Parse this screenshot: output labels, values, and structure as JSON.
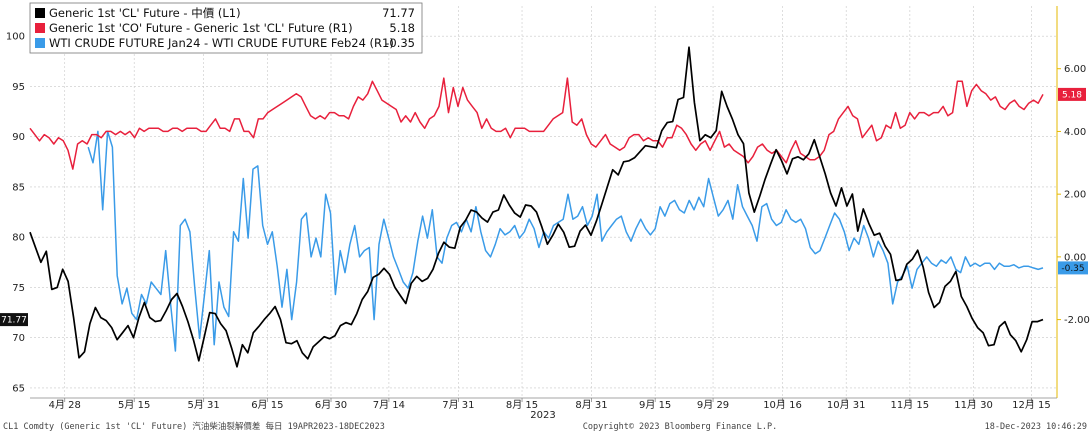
{
  "chart_data": {
    "type": "line",
    "left_axis": {
      "ticks": [
        65,
        70,
        75,
        80,
        85,
        90,
        95,
        100
      ],
      "range": [
        64,
        103
      ]
    },
    "right_axis": {
      "ticks": [
        "6.00",
        "4.00",
        "2.00",
        "0.00",
        "-2.00"
      ],
      "tick_values": [
        6,
        4,
        2,
        0,
        -2
      ],
      "range": [
        -4.5,
        8.0
      ]
    },
    "x_labels": [
      "4月 28",
      "5月 15",
      "5月 31",
      "6月 15",
      "6月 30",
      "7月 14",
      "7月 31",
      "8月 15",
      "8月 31",
      "9月 15",
      "9月 29",
      "10月 16",
      "10月 31",
      "11月 15",
      "11月 30",
      "12月 15"
    ],
    "x_label_index": [
      6,
      18,
      30,
      41,
      52,
      62,
      74,
      85,
      97,
      108,
      118,
      130,
      141,
      152,
      163,
      173
    ],
    "x_total": 176,
    "year_label": "2023",
    "grid": true,
    "legend_position": "top-left",
    "series": [
      {
        "name": "Generic 1st 'CL' Future - 中價 (L1)",
        "last_value": "71.77",
        "color": "#000000",
        "axis": "left",
        "values": [
          80.5,
          79.0,
          77.5,
          78.6,
          74.8,
          75.0,
          76.8,
          75.6,
          72.0,
          68.0,
          68.6,
          71.4,
          73.0,
          72.0,
          71.7,
          71.0,
          69.8,
          70.5,
          71.2,
          70.0,
          72.0,
          73.5,
          72.0,
          71.6,
          71.7,
          72.7,
          73.8,
          74.4,
          73.1,
          71.6,
          69.8,
          67.7,
          70.1,
          72.5,
          72.4,
          71.4,
          70.7,
          69.0,
          67.1,
          69.3,
          68.5,
          70.5,
          71.1,
          71.8,
          72.4,
          73.1,
          71.8,
          69.5,
          69.4,
          69.7,
          68.5,
          67.9,
          69.1,
          69.6,
          70.1,
          69.9,
          70.2,
          71.2,
          71.5,
          71.3,
          72.4,
          73.8,
          74.6,
          76.0,
          76.3,
          76.9,
          76.3,
          75.0,
          74.2,
          73.4,
          75.4,
          76.1,
          75.6,
          75.9,
          76.8,
          78.4,
          79.5,
          79.0,
          78.9,
          81.0,
          81.7,
          82.7,
          82.5,
          81.9,
          81.5,
          82.5,
          82.7,
          84.2,
          83.2,
          82.4,
          82.0,
          83.2,
          83.1,
          82.5,
          81.0,
          79.3,
          80.2,
          81.3,
          80.5,
          79.0,
          79.1,
          80.6,
          81.2,
          80.2,
          81.6,
          83.3,
          85.0,
          86.7,
          86.2,
          87.5,
          87.6,
          87.9,
          88.5,
          89.1,
          89.0,
          88.9,
          90.6,
          91.4,
          91.5,
          93.7,
          93.9,
          98.9,
          93.4,
          89.6,
          90.2,
          89.9,
          90.6,
          94.5,
          93.0,
          91.7,
          90.2,
          89.3,
          84.4,
          82.5,
          84.1,
          85.8,
          87.3,
          88.7,
          87.6,
          86.3,
          87.8,
          88.0,
          87.7,
          88.3,
          89.7,
          88.0,
          86.3,
          84.4,
          83.1,
          84.9,
          83.1,
          84.3,
          80.6,
          82.8,
          81.4,
          80.2,
          80.4,
          79.1,
          78.3,
          75.7,
          75.8,
          77.3,
          77.8,
          78.7,
          77.0,
          74.5,
          73.0,
          73.5,
          75.1,
          75.6,
          76.6,
          74.1,
          73.1,
          71.9,
          71.0,
          70.5,
          69.2,
          69.3,
          71.1,
          71.6,
          70.3,
          69.7,
          68.6,
          69.8,
          71.6,
          71.6,
          71.8
        ]
      },
      {
        "name": "Generic 1st 'CO' Future - Generic 1st 'CL' Future (R1)",
        "last_value": "5.18",
        "color": "#e8203c",
        "axis": "right",
        "values": [
          4.1,
          3.9,
          3.7,
          3.9,
          3.8,
          3.6,
          3.8,
          3.7,
          3.4,
          2.8,
          3.6,
          3.7,
          3.6,
          3.9,
          3.9,
          3.8,
          4.0,
          4.0,
          3.9,
          4.0,
          3.9,
          4.0,
          3.8,
          4.1,
          4.0,
          4.1,
          4.1,
          4.1,
          4.0,
          4.0,
          4.1,
          4.1,
          4.0,
          4.1,
          4.1,
          4.1,
          4.0,
          4.0,
          4.2,
          4.4,
          4.1,
          4.1,
          4.0,
          4.4,
          4.4,
          4.0,
          4.0,
          3.8,
          4.4,
          4.4,
          4.6,
          4.7,
          4.8,
          4.9,
          5.0,
          5.1,
          5.2,
          5.1,
          4.8,
          4.5,
          4.4,
          4.5,
          4.4,
          4.6,
          4.6,
          4.5,
          4.5,
          4.4,
          4.8,
          5.1,
          5.0,
          5.2,
          5.6,
          5.3,
          5.0,
          4.9,
          4.8,
          4.7,
          4.3,
          4.5,
          4.3,
          4.6,
          4.3,
          4.1,
          4.4,
          4.5,
          4.8,
          5.7,
          4.6,
          5.4,
          4.8,
          5.4,
          5.0,
          4.8,
          4.6,
          4.1,
          4.4,
          4.1,
          4.0,
          4.0,
          4.1,
          3.8,
          4.1,
          4.1,
          4.1,
          4.0,
          4.0,
          4.0,
          4.0,
          4.2,
          4.4,
          4.5,
          4.6,
          5.7,
          4.3,
          4.2,
          4.4,
          3.9,
          3.6,
          3.5,
          3.7,
          3.9,
          3.6,
          3.5,
          3.4,
          3.5,
          3.8,
          3.9,
          3.9,
          3.7,
          3.8,
          3.7,
          3.7,
          3.5,
          3.8,
          3.8,
          4.2,
          4.1,
          3.9,
          3.6,
          3.4,
          3.6,
          3.7,
          3.4,
          3.7,
          4.0,
          3.5,
          3.6,
          3.4,
          3.3,
          3.2,
          3.0,
          3.2,
          3.5,
          3.6,
          3.4,
          3.3,
          3.4,
          3.2,
          3.0,
          3.4,
          3.7,
          3.3,
          3.2,
          3.1,
          3.1,
          3.2,
          3.4,
          3.9,
          4.0,
          4.4,
          4.6,
          4.8,
          4.5,
          4.4,
          3.8,
          4.0,
          4.2,
          3.7,
          3.8,
          4.2,
          4.1,
          4.6,
          4.1,
          4.2,
          4.6,
          4.4,
          4.6,
          4.6,
          4.5,
          4.6,
          4.6,
          4.8,
          4.5,
          4.6,
          5.6,
          5.6,
          4.8,
          5.3,
          5.5,
          5.3,
          5.2,
          5.0,
          5.1,
          4.8,
          4.7,
          4.9,
          5.0,
          4.8,
          4.7,
          4.9,
          5.0,
          4.9,
          5.18
        ]
      },
      {
        "name": "WTI CRUDE FUTURE Jan24 - WTI CRUDE FUTURE Feb24 (R1)",
        "last_value": "-0.35",
        "color": "#3a9be8",
        "axis": "right",
        "values": [
          null,
          null,
          null,
          null,
          null,
          null,
          null,
          null,
          null,
          null,
          null,
          null,
          3.5,
          3.0,
          4.0,
          1.5,
          4.0,
          3.5,
          -0.6,
          -1.5,
          -1.0,
          -1.8,
          -2.0,
          -1.2,
          -1.5,
          -0.8,
          -1.0,
          -1.2,
          0.2,
          -1.5,
          -3.0,
          1.0,
          1.2,
          0.8,
          -1.0,
          -2.6,
          -1.2,
          0.2,
          -2.8,
          -0.8,
          -1.6,
          -1.9,
          0.8,
          0.5,
          2.5,
          0.6,
          2.8,
          2.9,
          1.0,
          0.4,
          0.8,
          -0.3,
          -1.6,
          -0.4,
          -2.0,
          -0.8,
          1.2,
          1.4,
          0.0,
          0.6,
          0.0,
          2.0,
          1.4,
          -1.2,
          0.2,
          -0.5,
          0.4,
          1.0,
          0.0,
          0.2,
          0.3,
          -2.0,
          0.4,
          1.2,
          0.6,
          0.0,
          -0.4,
          -0.8,
          -1.0,
          -0.5,
          0.5,
          1.3,
          0.6,
          1.5,
          0.0,
          -0.2,
          0.6,
          1.0,
          1.1,
          0.8,
          1.2,
          0.8,
          1.6,
          0.8,
          0.2,
          0.0,
          0.4,
          0.9,
          0.7,
          0.8,
          1.0,
          0.6,
          0.8,
          1.2,
          0.9,
          0.3,
          0.8,
          0.6,
          1.0,
          1.1,
          1.2,
          2.0,
          1.2,
          1.3,
          1.6,
          1.0,
          1.3,
          2.0,
          0.5,
          0.8,
          1.0,
          1.2,
          1.3,
          0.8,
          0.5,
          0.9,
          1.2,
          0.9,
          0.7,
          0.9,
          1.6,
          1.3,
          1.7,
          1.8,
          1.5,
          1.4,
          1.8,
          1.5,
          1.9,
          1.6,
          2.5,
          1.9,
          1.3,
          1.5,
          1.8,
          1.2,
          2.3,
          1.6,
          1.3,
          1.0,
          0.5,
          1.6,
          1.7,
          1.2,
          1.0,
          1.1,
          1.5,
          1.2,
          1.1,
          1.2,
          0.9,
          0.3,
          0.1,
          0.2,
          0.6,
          1.0,
          1.4,
          1.2,
          0.8,
          0.2,
          0.6,
          0.4,
          1.0,
          0.6,
          0.0,
          0.5,
          0.2,
          -0.2,
          -1.5,
          -0.8,
          -0.6,
          -0.3,
          -1.0,
          -0.4,
          -0.2,
          0.0,
          -0.2,
          -0.3,
          -0.1,
          -0.2,
          0.0,
          -0.4,
          -0.5,
          0.0,
          -0.3,
          -0.2,
          -0.3,
          -0.2,
          -0.2,
          -0.4,
          -0.2,
          -0.3,
          -0.3,
          -0.25,
          -0.35,
          -0.3,
          -0.3,
          -0.35,
          -0.4,
          -0.35
        ]
      }
    ]
  },
  "legend": {
    "cl": {
      "label": "Generic 1st 'CL' Future - 中價 (L1)",
      "value": "71.77"
    },
    "co": {
      "label": "Generic 1st 'CO' Future - Generic 1st 'CL' Future (R1)",
      "value": "5.18"
    },
    "wti": {
      "label": "WTI CRUDE FUTURE Jan24 - WTI CRUDE FUTURE Feb24 (R1)",
      "value": "-0.35"
    }
  },
  "flags": {
    "cl": "71.77",
    "co": "5.18",
    "wti": "-0.35"
  },
  "footer": {
    "left": "CL1 Comdty (Generic 1st 'CL' Future) 汽油柴油裂解價差  每日 19APR2023-18DEC2023",
    "center": "Copyright© 2023 Bloomberg Finance L.P.",
    "right": "18-Dec-2023 10:46:29"
  },
  "colors": {
    "cl": "#000000",
    "co": "#e8203c",
    "wti": "#3a9be8",
    "right_axis": "#e6b800"
  }
}
